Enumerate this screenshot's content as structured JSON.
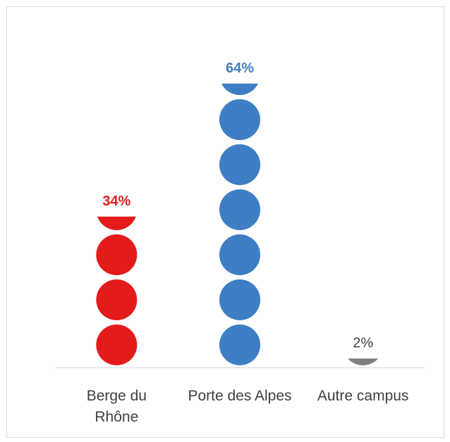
{
  "chart_data": {
    "type": "pictograph",
    "categories": [
      "Berge du Rhône",
      "Porte des Alpes",
      "Autre campus"
    ],
    "values": [
      34,
      64,
      2
    ],
    "value_labels": [
      "34%",
      "64%",
      "2%"
    ],
    "colors": [
      "#e31b1b",
      "#3d7ec4",
      "#7f7f7f"
    ],
    "value_label_colors": [
      "#e31b1b",
      "#3d7ec4",
      "#404040"
    ]
  }
}
